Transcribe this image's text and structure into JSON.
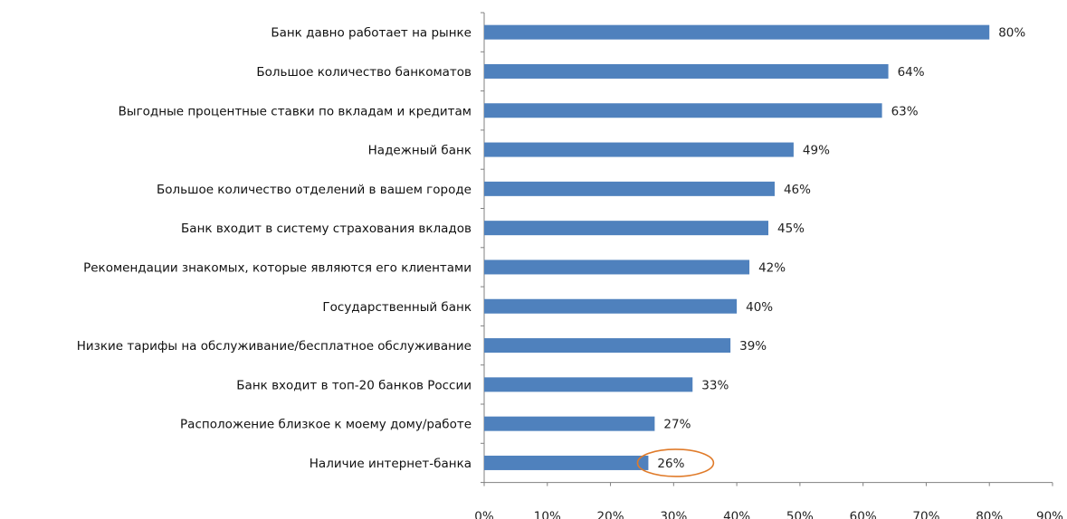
{
  "chart_data": {
    "type": "bar",
    "orientation": "horizontal",
    "title": "",
    "xlabel": "",
    "ylabel": "",
    "categories": [
      "Банк давно работает на рынке",
      "Большое количество банкоматов",
      "Выгодные процентные ставки по вкладам и кредитам",
      "Надежный банк",
      "Большое количество отделений в вашем городе",
      "Банк входит в систему страхования вкладов",
      "Рекомендации знакомых, которые являются его клиентами",
      "Государственный банк",
      "Низкие тарифы на обслуживание/бесплатное обслуживание",
      "Банк входит в топ-20 банков России",
      "Расположение близкое к моему дому/работе",
      "Наличие интернет-банка"
    ],
    "values": [
      80,
      64,
      63,
      49,
      46,
      45,
      42,
      40,
      39,
      33,
      27,
      26
    ],
    "value_labels": [
      "80%",
      "64%",
      "63%",
      "49%",
      "46%",
      "45%",
      "42%",
      "40%",
      "39%",
      "33%",
      "27%",
      "26%"
    ],
    "xlim": [
      0,
      90
    ],
    "x_ticks": [
      0,
      10,
      20,
      30,
      40,
      50,
      60,
      70,
      80,
      90
    ],
    "x_tick_labels": [
      "0%",
      "10%",
      "20%",
      "30%",
      "40%",
      "50%",
      "60%",
      "70%",
      "80%",
      "90%"
    ],
    "grid": false,
    "legend": "none",
    "bar_color": "#4f81bd",
    "highlight": {
      "category_index": 11,
      "shape": "ellipse",
      "color": "#e07b2a"
    }
  }
}
